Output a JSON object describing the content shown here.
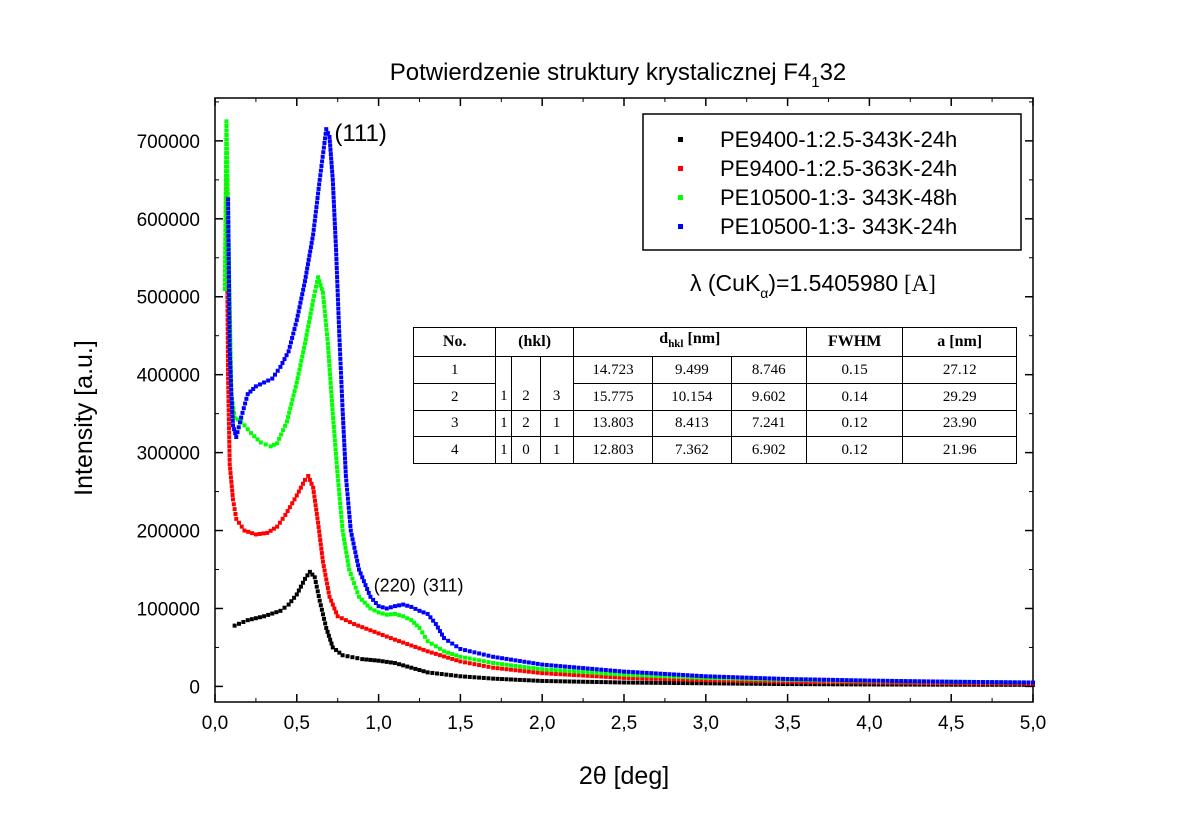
{
  "chart_data": {
    "type": "scatter",
    "title": "Potwierdzenie struktury krystalicznej F4",
    "title_subscript": "1",
    "title_suffix": "32",
    "xlabel": "2θ [deg]",
    "ylabel": "Intensity [a.u.]",
    "xlim": [
      0.0,
      5.0
    ],
    "ylim": [
      -20000,
      755000
    ],
    "x_ticks": [
      0.0,
      0.5,
      1.0,
      1.5,
      2.0,
      2.5,
      3.0,
      3.5,
      4.0,
      4.5,
      5.0
    ],
    "x_tick_labels": [
      "0,0",
      "0,5",
      "1,0",
      "1,5",
      "2,0",
      "2,5",
      "3,0",
      "3,5",
      "4,0",
      "4,5",
      "5,0"
    ],
    "y_ticks": [
      0,
      100000,
      200000,
      300000,
      400000,
      500000,
      600000,
      700000
    ],
    "y_tick_labels": [
      "0",
      "100000",
      "200000",
      "300000",
      "400000",
      "500000",
      "600000",
      "700000"
    ],
    "grid": false,
    "legend_position": "top-right",
    "series": [
      {
        "name": "PE9400-1:2.5-343K-24h",
        "color": "#000000",
        "points": [
          [
            0.12,
            78000
          ],
          [
            0.2,
            85000
          ],
          [
            0.3,
            90000
          ],
          [
            0.4,
            97000
          ],
          [
            0.45,
            105000
          ],
          [
            0.5,
            118000
          ],
          [
            0.55,
            138000
          ],
          [
            0.58,
            147000
          ],
          [
            0.61,
            140000
          ],
          [
            0.64,
            110000
          ],
          [
            0.68,
            75000
          ],
          [
            0.72,
            50000
          ],
          [
            0.78,
            40000
          ],
          [
            0.9,
            35000
          ],
          [
            1.0,
            33000
          ],
          [
            1.1,
            30000
          ],
          [
            1.2,
            24000
          ],
          [
            1.3,
            18000
          ],
          [
            1.5,
            13000
          ],
          [
            1.7,
            10000
          ],
          [
            2.0,
            7000
          ],
          [
            2.5,
            5000
          ],
          [
            3.0,
            4000
          ],
          [
            3.5,
            3000
          ],
          [
            4.0,
            2500
          ],
          [
            4.5,
            2200
          ],
          [
            5.0,
            2000
          ]
        ]
      },
      {
        "name": "PE9400-1:2.5-363K-24h",
        "color": "#ff0000",
        "points": [
          [
            0.07,
            650000
          ],
          [
            0.08,
            395000
          ],
          [
            0.09,
            285000
          ],
          [
            0.11,
            240000
          ],
          [
            0.13,
            215000
          ],
          [
            0.18,
            200000
          ],
          [
            0.25,
            195000
          ],
          [
            0.32,
            197000
          ],
          [
            0.38,
            205000
          ],
          [
            0.43,
            220000
          ],
          [
            0.5,
            245000
          ],
          [
            0.55,
            265000
          ],
          [
            0.57,
            270000
          ],
          [
            0.6,
            255000
          ],
          [
            0.63,
            210000
          ],
          [
            0.66,
            160000
          ],
          [
            0.7,
            115000
          ],
          [
            0.75,
            90000
          ],
          [
            0.85,
            80000
          ],
          [
            0.95,
            72000
          ],
          [
            1.1,
            60000
          ],
          [
            1.3,
            45000
          ],
          [
            1.5,
            32000
          ],
          [
            1.7,
            24000
          ],
          [
            2.0,
            17000
          ],
          [
            2.5,
            11000
          ],
          [
            3.0,
            8000
          ],
          [
            3.5,
            6000
          ],
          [
            4.0,
            5000
          ],
          [
            4.5,
            4200
          ],
          [
            5.0,
            3500
          ]
        ]
      },
      {
        "name": "PE10500-1:3- 343K-48h",
        "color": "#00ff00",
        "points": [
          [
            0.06,
            510000
          ],
          [
            0.07,
            725000
          ],
          [
            0.09,
            487000
          ],
          [
            0.1,
            375000
          ],
          [
            0.12,
            345000
          ],
          [
            0.16,
            340000
          ],
          [
            0.22,
            325000
          ],
          [
            0.28,
            313000
          ],
          [
            0.34,
            308000
          ],
          [
            0.38,
            312000
          ],
          [
            0.44,
            340000
          ],
          [
            0.5,
            390000
          ],
          [
            0.55,
            440000
          ],
          [
            0.6,
            495000
          ],
          [
            0.63,
            525000
          ],
          [
            0.66,
            505000
          ],
          [
            0.69,
            440000
          ],
          [
            0.72,
            350000
          ],
          [
            0.75,
            270000
          ],
          [
            0.78,
            200000
          ],
          [
            0.82,
            150000
          ],
          [
            0.88,
            115000
          ],
          [
            0.95,
            100000
          ],
          [
            1.0,
            95000
          ],
          [
            1.05,
            92000
          ],
          [
            1.1,
            93000
          ],
          [
            1.15,
            90000
          ],
          [
            1.2,
            85000
          ],
          [
            1.25,
            75000
          ],
          [
            1.3,
            58000
          ],
          [
            1.4,
            45000
          ],
          [
            1.5,
            38000
          ],
          [
            1.7,
            30000
          ],
          [
            2.0,
            22000
          ],
          [
            2.5,
            15000
          ],
          [
            3.0,
            11000
          ],
          [
            3.5,
            8500
          ],
          [
            4.0,
            7000
          ],
          [
            4.5,
            6000
          ],
          [
            5.0,
            5000
          ]
        ]
      },
      {
        "name": "PE10500-1:3- 343K-24h",
        "color": "#0000ff",
        "points": [
          [
            0.08,
            625000
          ],
          [
            0.09,
            432000
          ],
          [
            0.1,
            375000
          ],
          [
            0.11,
            335000
          ],
          [
            0.13,
            320000
          ],
          [
            0.16,
            345000
          ],
          [
            0.2,
            375000
          ],
          [
            0.25,
            385000
          ],
          [
            0.3,
            390000
          ],
          [
            0.35,
            395000
          ],
          [
            0.4,
            410000
          ],
          [
            0.45,
            430000
          ],
          [
            0.5,
            470000
          ],
          [
            0.55,
            520000
          ],
          [
            0.6,
            580000
          ],
          [
            0.64,
            650000
          ],
          [
            0.68,
            715000
          ],
          [
            0.7,
            705000
          ],
          [
            0.72,
            650000
          ],
          [
            0.74,
            560000
          ],
          [
            0.76,
            450000
          ],
          [
            0.78,
            355000
          ],
          [
            0.8,
            270000
          ],
          [
            0.83,
            200000
          ],
          [
            0.88,
            150000
          ],
          [
            0.95,
            115000
          ],
          [
            1.0,
            103000
          ],
          [
            1.05,
            100000
          ],
          [
            1.1,
            103000
          ],
          [
            1.15,
            105000
          ],
          [
            1.2,
            102000
          ],
          [
            1.25,
            97000
          ],
          [
            1.3,
            93000
          ],
          [
            1.35,
            80000
          ],
          [
            1.4,
            62000
          ],
          [
            1.5,
            48000
          ],
          [
            1.7,
            38000
          ],
          [
            2.0,
            28000
          ],
          [
            2.5,
            19000
          ],
          [
            3.0,
            13000
          ],
          [
            3.5,
            9500
          ],
          [
            4.0,
            7500
          ],
          [
            4.5,
            6000
          ],
          [
            5.0,
            5000
          ]
        ]
      }
    ],
    "annotations": [
      {
        "text": "(111)",
        "x": 0.73,
        "y": 700000
      },
      {
        "text": "(220)",
        "x": 0.97,
        "y": 122000
      },
      {
        "text": "(311)",
        "x": 1.27,
        "y": 122000
      }
    ],
    "wavelength": {
      "prefix": "λ (CuK",
      "subscript": "α",
      "value": ")=1.5405980",
      "unit": " [A]"
    }
  },
  "table": {
    "headers": [
      "No.",
      "(hkl)",
      "d",
      "hkl",
      " [nm]",
      "FWHM",
      "a [nm]"
    ],
    "rows": [
      {
        "no": "1",
        "h": "",
        "k": "",
        "l": "",
        "d1": "14.723",
        "d2": "9.499",
        "d3": "8.746",
        "fwhm": "0.15",
        "a": "27.12"
      },
      {
        "no": "2",
        "h": "1",
        "k": "2",
        "l": "3",
        "d1": "15.775",
        "d2": "10.154",
        "d3": "9.602",
        "fwhm": "0.14",
        "a": "29.29"
      },
      {
        "no": "3",
        "h": "1",
        "k": "2",
        "l": "1",
        "d1": "13.803",
        "d2": "8.413",
        "d3": "7.241",
        "fwhm": "0.12",
        "a": "23.90"
      },
      {
        "no": "4",
        "h": "1",
        "k": "0",
        "l": "1",
        "d1": "12.803",
        "d2": "7.362",
        "d3": "6.902",
        "fwhm": "0.12",
        "a": "21.96"
      }
    ]
  }
}
